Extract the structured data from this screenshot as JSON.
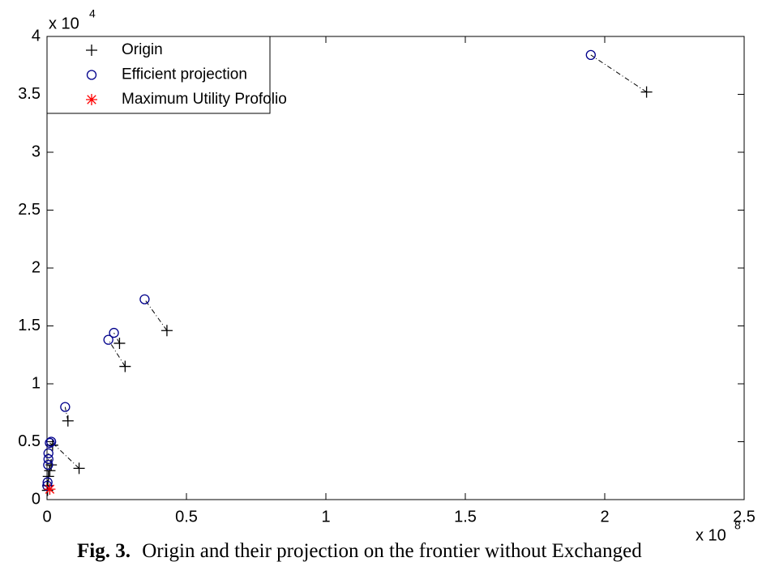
{
  "chart_data": {
    "type": "scatter",
    "xlim": [
      0,
      2.5
    ],
    "ylim": [
      0,
      4
    ],
    "xticks": [
      0,
      0.5,
      1,
      1.5,
      2,
      2.5
    ],
    "yticks": [
      0,
      0.5,
      1,
      1.5,
      2,
      2.5,
      3,
      3.5,
      4
    ],
    "x_multiplier": {
      "base": "x 10",
      "exponent": "8"
    },
    "y_multiplier": {
      "base": "x 10",
      "exponent": "4"
    },
    "legend": "upper left",
    "connectors": "dash-dot",
    "series": [
      {
        "name": "Origin",
        "color": "#000000",
        "marker": "plus",
        "x": [
          2.15,
          0.43,
          0.26,
          0.28,
          0.075,
          0.115,
          0.02,
          0.015,
          0.01,
          0.005,
          0.003,
          0.002
        ],
        "y": [
          3.52,
          1.46,
          1.35,
          1.15,
          0.68,
          0.27,
          0.47,
          0.3,
          0.25,
          0.2,
          0.12,
          0.08
        ]
      },
      {
        "name": "Efficient projection",
        "color": "#00008b",
        "marker": "circle",
        "x": [
          1.95,
          0.35,
          0.24,
          0.22,
          0.065,
          0.015,
          0.01,
          0.005,
          0.005,
          0.004,
          0.002,
          0.001
        ],
        "y": [
          3.84,
          1.73,
          1.44,
          1.38,
          0.8,
          0.5,
          0.49,
          0.4,
          0.35,
          0.3,
          0.15,
          0.12
        ]
      },
      {
        "name": "Maximum Utility Profolio",
        "color": "#ff0000",
        "marker": "star",
        "x": [
          0.01
        ],
        "y": [
          0.09
        ]
      }
    ]
  },
  "caption": {
    "label": "Fig. 3.",
    "text": "Origin and their projection on the frontier without Exchanged"
  }
}
